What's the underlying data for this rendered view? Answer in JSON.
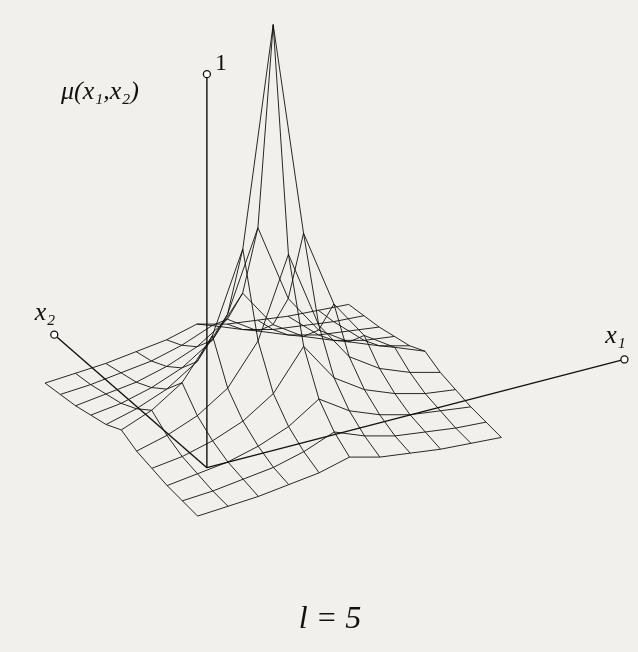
{
  "chart_data": {
    "type": "surface",
    "z_label": "μ(x₁,x₂)",
    "x_label": "x₁",
    "y_label": "x₂",
    "subtitle": "l = 5",
    "color": "#111111",
    "x": [
      -1.5,
      -0.7,
      0.1,
      0.9,
      1.7,
      2.5,
      3.3,
      4.1,
      4.9,
      5.7,
      6.5
    ],
    "y": [
      -2.5,
      -1.7,
      -0.9,
      -0.1,
      0.7,
      1.5,
      2.3,
      3.1,
      3.9,
      4.7,
      5.5
    ],
    "z": [
      [
        0.02,
        0.025,
        0.03,
        0.04,
        0.05,
        0.07,
        0.05,
        0.04,
        0.03,
        0.025,
        0.02
      ],
      [
        0.025,
        0.03,
        0.04,
        0.05,
        0.07,
        0.1,
        0.07,
        0.05,
        0.04,
        0.03,
        0.025
      ],
      [
        0.03,
        0.04,
        0.05,
        0.07,
        0.1,
        0.15,
        0.1,
        0.07,
        0.05,
        0.04,
        0.03
      ],
      [
        0.04,
        0.05,
        0.07,
        0.1,
        0.15,
        0.25,
        0.15,
        0.1,
        0.07,
        0.05,
        0.04
      ],
      [
        0.05,
        0.07,
        0.1,
        0.15,
        0.25,
        0.45,
        0.25,
        0.15,
        0.1,
        0.07,
        0.05
      ],
      [
        0.07,
        0.1,
        0.15,
        0.25,
        0.45,
        1,
        0.45,
        0.25,
        0.15,
        0.1,
        0.07
      ],
      [
        0.05,
        0.07,
        0.1,
        0.15,
        0.25,
        0.45,
        0.25,
        0.15,
        0.1,
        0.07,
        0.05
      ],
      [
        0.04,
        0.05,
        0.07,
        0.1,
        0.15,
        0.25,
        0.15,
        0.1,
        0.07,
        0.05,
        0.04
      ],
      [
        0.03,
        0.04,
        0.05,
        0.07,
        0.1,
        0.15,
        0.1,
        0.07,
        0.05,
        0.04,
        0.03
      ],
      [
        0.025,
        0.03,
        0.04,
        0.05,
        0.07,
        0.1,
        0.07,
        0.05,
        0.04,
        0.03,
        0.025
      ],
      [
        0.02,
        0.025,
        0.03,
        0.04,
        0.05,
        0.07,
        0.05,
        0.04,
        0.03,
        0.025,
        0.02
      ]
    ],
    "xlim": [
      0,
      11
    ],
    "ylim": [
      0,
      8
    ],
    "zlim": [
      0,
      1
    ],
    "zticks": [
      1
    ]
  }
}
